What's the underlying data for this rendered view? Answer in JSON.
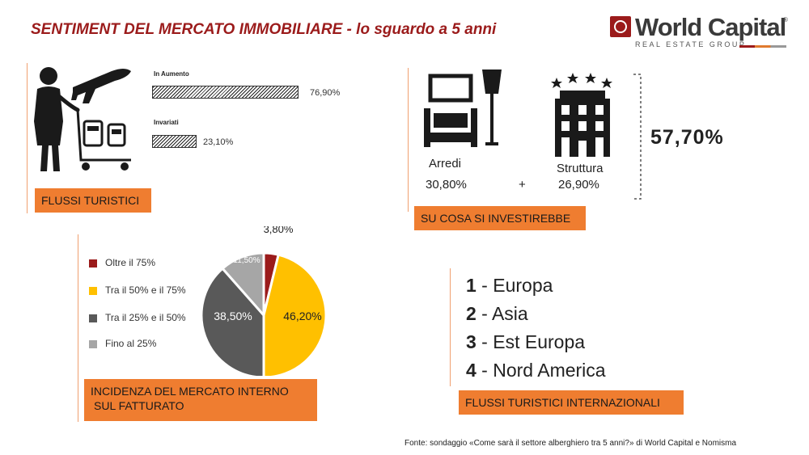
{
  "title": "SENTIMENT DEL MERCATO IMMOBILIARE - lo sguardo a 5 anni",
  "logo": {
    "name": "World Capital",
    "registered": "®",
    "subtitle": "REAL ESTATE GROUP"
  },
  "tourism": {
    "label": "FLUSSI TURISTICI",
    "rows": [
      {
        "label": "In Aumento",
        "value": 76.9,
        "value_text": "76,90%"
      },
      {
        "label": "Invariati",
        "value": 23.1,
        "value_text": "23,10%"
      }
    ]
  },
  "investment": {
    "label": "SU COSA SI INVESTIREBBE",
    "items": [
      {
        "label": "Arredi",
        "value_text": "30,80%"
      },
      {
        "label": "Struttura",
        "value_text": "26,90%"
      }
    ],
    "plus": "+",
    "total": "57,70%"
  },
  "domestic": {
    "label_line1": "INCIDENZA DEL MERCATO INTERNO",
    "label_line2": "SUL FATTURATO"
  },
  "international": {
    "label": "FLUSSI TURISTICI INTERNAZIONALI",
    "ranking": [
      {
        "rank": "1",
        "name": "Europa"
      },
      {
        "rank": "2",
        "name": "Asia"
      },
      {
        "rank": "3",
        "name": "Est Europa"
      },
      {
        "rank": "4",
        "name": "Nord America"
      }
    ]
  },
  "source": "Fonte: sondaggio «Come sarà il settore alberghiero tra 5 anni?» di World Capital e Nomisma",
  "chart_data": {
    "type": "pie",
    "slices": [
      {
        "name": "Oltre il 75%",
        "value": 3.8,
        "label": "3,80%",
        "color": "#9b1b1b"
      },
      {
        "name": "Tra il 50% e il 75%",
        "value": 46.2,
        "label": "46,20%",
        "color": "#ffc000"
      },
      {
        "name": "Tra il 25% e il 50%",
        "value": 38.5,
        "label": "38,50%",
        "color": "#595959"
      },
      {
        "name": "Fino al 25%",
        "value": 11.5,
        "label": "11,50%",
        "color": "#a6a6a6"
      }
    ],
    "legend_position": "left"
  }
}
